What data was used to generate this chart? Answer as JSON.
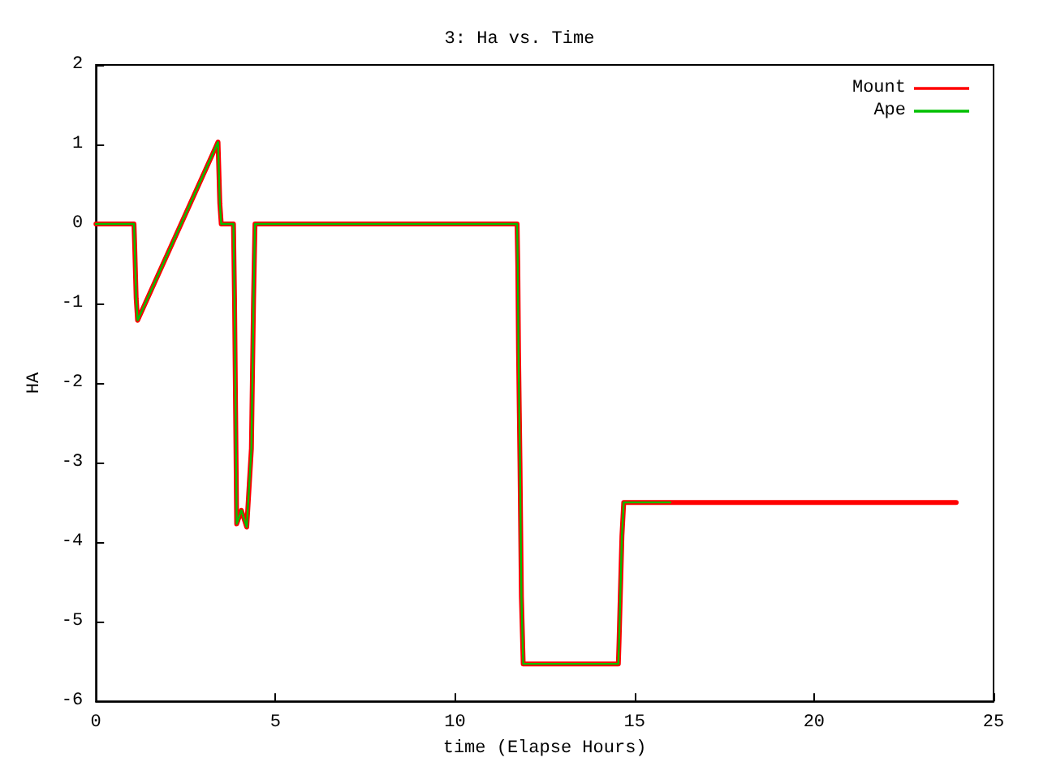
{
  "chart_data": {
    "type": "line",
    "title": "3: Ha vs. Time",
    "xlabel": "time (Elapse Hours)",
    "ylabel": "HA",
    "xlim": [
      0,
      25
    ],
    "xticks": [
      0,
      5,
      10,
      15,
      20,
      25
    ],
    "ylim": [
      -6,
      2
    ],
    "yticks": [
      -6,
      -5,
      -4,
      -3,
      -2,
      -1,
      0,
      1,
      2
    ],
    "grid": false,
    "legend": "top right",
    "marker": "none",
    "line_style": "solid",
    "series": [
      {
        "name": "Mount",
        "color": "#ff0000",
        "x": [
          0,
          1.06,
          1.08,
          1.12,
          1.16,
          3.4,
          3.45,
          3.49,
          3.83,
          3.86,
          3.9,
          3.92,
          4.05,
          4.2,
          4.33,
          4.39,
          4.43,
          11.73,
          11.75,
          11.77,
          11.81,
          11.85,
          11.9,
          14.55,
          14.57,
          14.6,
          14.65,
          14.7,
          23.96
        ],
        "values": [
          0,
          0,
          -0.29,
          -0.93,
          -1.21,
          1.03,
          0.26,
          0,
          0,
          -0.95,
          -2.83,
          -3.77,
          -3.6,
          -3.81,
          -2.82,
          -0.95,
          0,
          0,
          -0.54,
          -1.62,
          -3.0,
          -4.69,
          -5.53,
          -5.53,
          -5.25,
          -4.75,
          -3.92,
          -3.5,
          -3.5
        ]
      },
      {
        "name": "Ape",
        "color": "#00c000",
        "x": [
          0,
          1.06,
          1.08,
          1.12,
          1.16,
          3.4,
          3.45,
          3.49,
          3.83,
          3.86,
          3.9,
          3.92,
          4.05,
          4.2,
          4.33,
          4.39,
          4.43,
          11.73,
          11.75,
          11.77,
          11.81,
          11.85,
          11.9,
          14.55,
          14.57,
          14.6,
          14.65,
          14.7,
          16
        ],
        "values": [
          0,
          0,
          -0.29,
          -0.93,
          -1.21,
          1.03,
          0.26,
          0,
          0,
          -0.95,
          -2.83,
          -3.77,
          -3.6,
          -3.81,
          -2.82,
          -0.95,
          0,
          0,
          -0.54,
          -1.62,
          -3.0,
          -4.69,
          -5.53,
          -5.53,
          -5.25,
          -4.75,
          -3.92,
          -3.5,
          -3.5
        ]
      }
    ]
  }
}
